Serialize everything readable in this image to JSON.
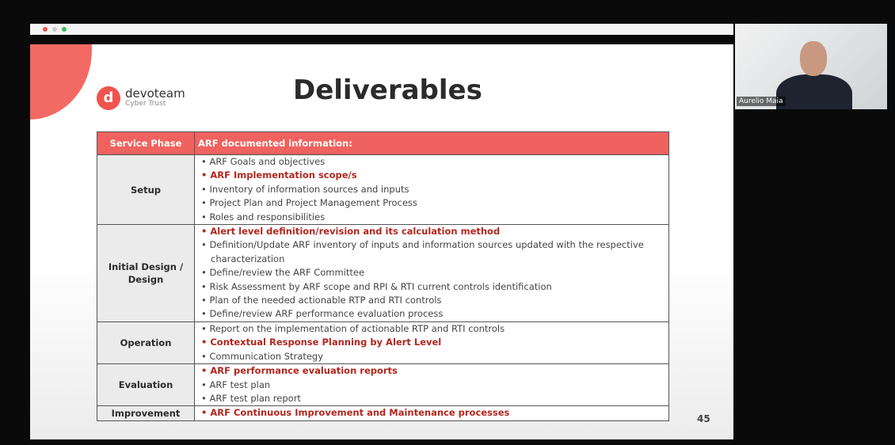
{
  "slide": {
    "logo": {
      "name": "devoteam",
      "subtitle": "Cyber Trust"
    },
    "title": "Deliverables",
    "page_number": "45"
  },
  "table": {
    "header": [
      "Service Phase",
      "ARF documented information:"
    ],
    "rows": [
      {
        "phase": "Setup",
        "items": [
          {
            "text": "ARF Goals and objectives",
            "highlight": false
          },
          {
            "text": "ARF Implementation scope/s",
            "highlight": true
          },
          {
            "text": "Inventory of information sources and inputs",
            "highlight": false
          },
          {
            "text": "Project Plan and Project Management Process",
            "highlight": false
          },
          {
            "text": "Roles and responsibilities",
            "highlight": false
          }
        ]
      },
      {
        "phase": "Initial Design / Design",
        "items": [
          {
            "text": "Alert level definition/revision and its calculation method",
            "highlight": true
          },
          {
            "text": "Definition/Update ARF inventory of inputs and information sources updated with the respective characterization",
            "highlight": false
          },
          {
            "text": "Define/review the ARF Committee",
            "highlight": false
          },
          {
            "text": "Risk Assessment by ARF scope and RPI & RTI current controls identification",
            "highlight": false
          },
          {
            "text": "Plan of the needed actionable RTP and RTI controls",
            "highlight": false
          },
          {
            "text": "Define/review ARF performance evaluation process",
            "highlight": false
          }
        ]
      },
      {
        "phase": "Operation",
        "items": [
          {
            "text": "Report on the implementation of actionable RTP and RTI controls",
            "highlight": false
          },
          {
            "text": "Contextual Response Planning by Alert Level",
            "highlight": true
          },
          {
            "text": "Communication Strategy",
            "highlight": false
          }
        ]
      },
      {
        "phase": "Evaluation",
        "items": [
          {
            "text": "ARF performance evaluation reports",
            "highlight": true
          },
          {
            "text": "ARF test plan",
            "highlight": false
          },
          {
            "text": "ARF test plan report",
            "highlight": false
          }
        ]
      },
      {
        "phase": "Improvement",
        "items": [
          {
            "text": "ARF Continuous Improvement and Maintenance processes",
            "highlight": true
          }
        ]
      }
    ]
  },
  "video": {
    "participant": "Aurelio Maia"
  }
}
